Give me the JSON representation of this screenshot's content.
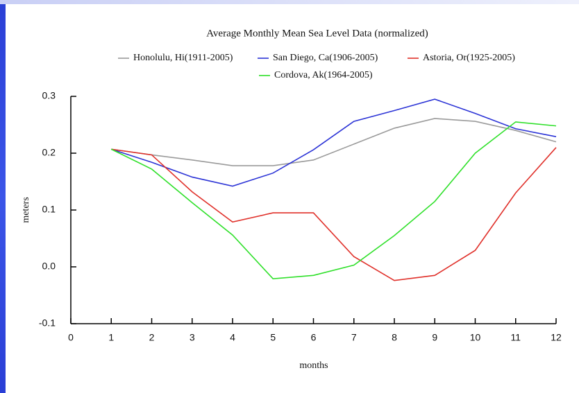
{
  "chart_data": {
    "type": "line",
    "title": "Average Monthly Mean Sea Level Data (normalized)",
    "x_label": "months",
    "y_label": "meters",
    "x": [
      1,
      2,
      3,
      4,
      5,
      6,
      7,
      8,
      9,
      10,
      11,
      12
    ],
    "xlim": [
      0,
      12
    ],
    "xticks": [
      0,
      1,
      2,
      3,
      4,
      5,
      6,
      7,
      8,
      9,
      10,
      11,
      12
    ],
    "ylim": [
      -0.1,
      0.3
    ],
    "yticks": [
      -0.1,
      {
        "value": 0,
        "label": "0.0"
      },
      0.1,
      0.2,
      0.3
    ],
    "series": [
      {
        "name": "Honolulu, Hi(1911-2005)",
        "color": "#9a9a9a",
        "values": [
          0.207,
          0.197,
          0.188,
          0.178,
          0.178,
          0.188,
          0.216,
          0.244,
          0.261,
          0.256,
          0.24,
          0.22
        ]
      },
      {
        "name": "San Diego, Ca(1906-2005)",
        "color": "#2b33d6",
        "values": [
          0.207,
          0.184,
          0.158,
          0.142,
          0.165,
          0.206,
          0.256,
          0.275,
          0.295,
          0.27,
          0.243,
          0.229
        ]
      },
      {
        "name": "Astoria, Or(1925-2005)",
        "color": "#e0302a",
        "values": [
          0.207,
          0.197,
          0.132,
          0.079,
          0.095,
          0.095,
          0.018,
          -0.024,
          -0.015,
          0.029,
          0.13,
          0.21
        ]
      },
      {
        "name": "Cordova, Ak(1964-2005)",
        "color": "#2fe02a",
        "values": [
          0.207,
          0.172,
          0.113,
          0.056,
          -0.021,
          -0.015,
          0.003,
          0.055,
          0.115,
          0.2,
          0.255,
          0.248
        ]
      }
    ]
  }
}
